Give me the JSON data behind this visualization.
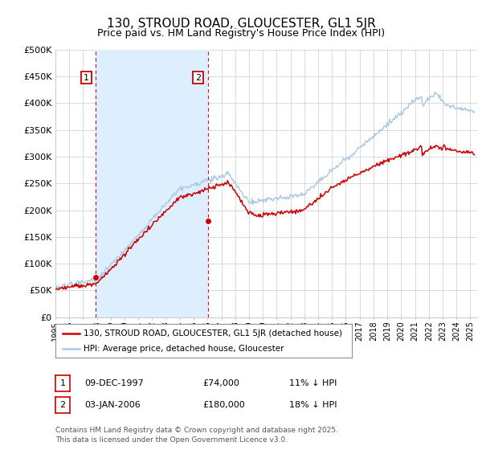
{
  "title": "130, STROUD ROAD, GLOUCESTER, GL1 5JR",
  "subtitle": "Price paid vs. HM Land Registry's House Price Index (HPI)",
  "ylabel_ticks": [
    "£0",
    "£50K",
    "£100K",
    "£150K",
    "£200K",
    "£250K",
    "£300K",
    "£350K",
    "£400K",
    "£450K",
    "£500K"
  ],
  "ytick_values": [
    0,
    50000,
    100000,
    150000,
    200000,
    250000,
    300000,
    350000,
    400000,
    450000,
    500000
  ],
  "ylim": [
    0,
    500000
  ],
  "xlim_start": 1995.0,
  "xlim_end": 2025.5,
  "purchase1_x": 1997.93,
  "purchase1_y": 74000,
  "purchase1_label": "1",
  "purchase2_x": 2006.02,
  "purchase2_y": 180000,
  "purchase2_label": "2",
  "hpi_color": "#a8c8e8",
  "price_color": "#cc0000",
  "vline_color": "#cc0000",
  "fill_color": "#ddeeff",
  "legend_label_price": "130, STROUD ROAD, GLOUCESTER, GL1 5JR (detached house)",
  "legend_label_hpi": "HPI: Average price, detached house, Gloucester",
  "table_row1": [
    "1",
    "09-DEC-1997",
    "£74,000",
    "11% ↓ HPI"
  ],
  "table_row2": [
    "2",
    "03-JAN-2006",
    "£180,000",
    "18% ↓ HPI"
  ],
  "footer": "Contains HM Land Registry data © Crown copyright and database right 2025.\nThis data is licensed under the Open Government Licence v3.0.",
  "background_color": "#ffffff",
  "grid_color": "#cccccc",
  "title_fontsize": 11,
  "subtitle_fontsize": 9,
  "tick_fontsize": 8
}
